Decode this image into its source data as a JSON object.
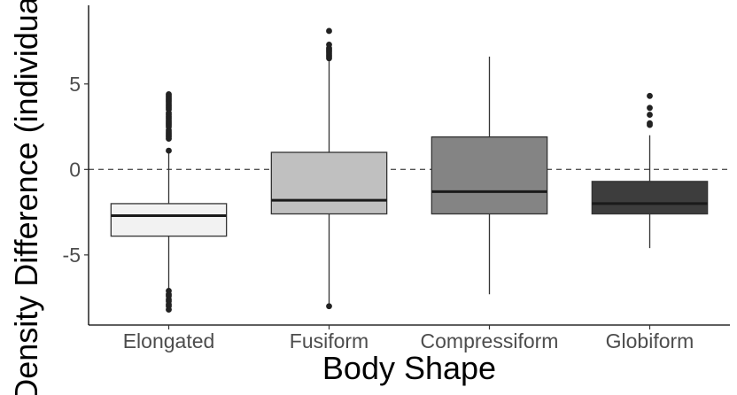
{
  "chart_data": {
    "type": "box",
    "title": "",
    "xlabel": "Body Shape",
    "ylabel": "Density Difference (individuals",
    "ylim": [
      -9.1,
      9.6
    ],
    "y_ticks": [
      -5,
      0,
      5
    ],
    "y_tick_labels": [
      "-5",
      "0",
      "5"
    ],
    "reference_line": {
      "y": 0,
      "style": "dashed"
    },
    "grid": false,
    "legend": "none",
    "categories": [
      "Elongated",
      "Fusiform",
      "Compressiform",
      "Globiform"
    ],
    "boxes": [
      {
        "category": "Elongated",
        "whisker_low": -7.0,
        "q1": -3.9,
        "median": -2.7,
        "q3": -2.0,
        "whisker_high": 1.0,
        "fill": "#f2f2f2",
        "outliers": [
          4.4,
          4.3,
          4.2,
          4.1,
          4.0,
          3.9,
          3.8,
          3.7,
          3.6,
          3.5,
          3.3,
          3.2,
          3.1,
          3.0,
          2.9,
          2.8,
          2.7,
          2.6,
          2.5,
          2.3,
          2.2,
          2.1,
          2.0,
          1.9,
          1.8,
          1.1,
          -7.1,
          -7.3,
          -7.4,
          -7.6,
          -7.7,
          -7.9,
          -8.0,
          -8.2
        ]
      },
      {
        "category": "Fusiform",
        "whisker_low": -8.0,
        "q1": -2.6,
        "median": -1.8,
        "q3": 1.0,
        "whisker_high": 6.4,
        "fill": "#c0c0c0",
        "outliers": [
          8.1,
          7.3,
          7.1,
          7.0,
          6.9,
          6.8,
          6.7,
          6.6,
          6.5,
          -8.0
        ]
      },
      {
        "category": "Compressiform",
        "whisker_low": -7.3,
        "q1": -2.6,
        "median": -1.3,
        "q3": 1.9,
        "whisker_high": 6.6,
        "fill": "#848484",
        "outliers": []
      },
      {
        "category": "Globiform",
        "whisker_low": -4.6,
        "q1": -2.6,
        "median": -2.0,
        "q3": -0.7,
        "whisker_high": 2.0,
        "fill": "#3d3d3d",
        "outliers": [
          4.3,
          3.6,
          3.2,
          2.7,
          2.6
        ]
      }
    ],
    "colors": {
      "median_line": "#1a1a1a",
      "box_outline": "#333333",
      "axis": "#000000",
      "tick_text": "#4d4d4d",
      "reference": "#555555"
    }
  }
}
